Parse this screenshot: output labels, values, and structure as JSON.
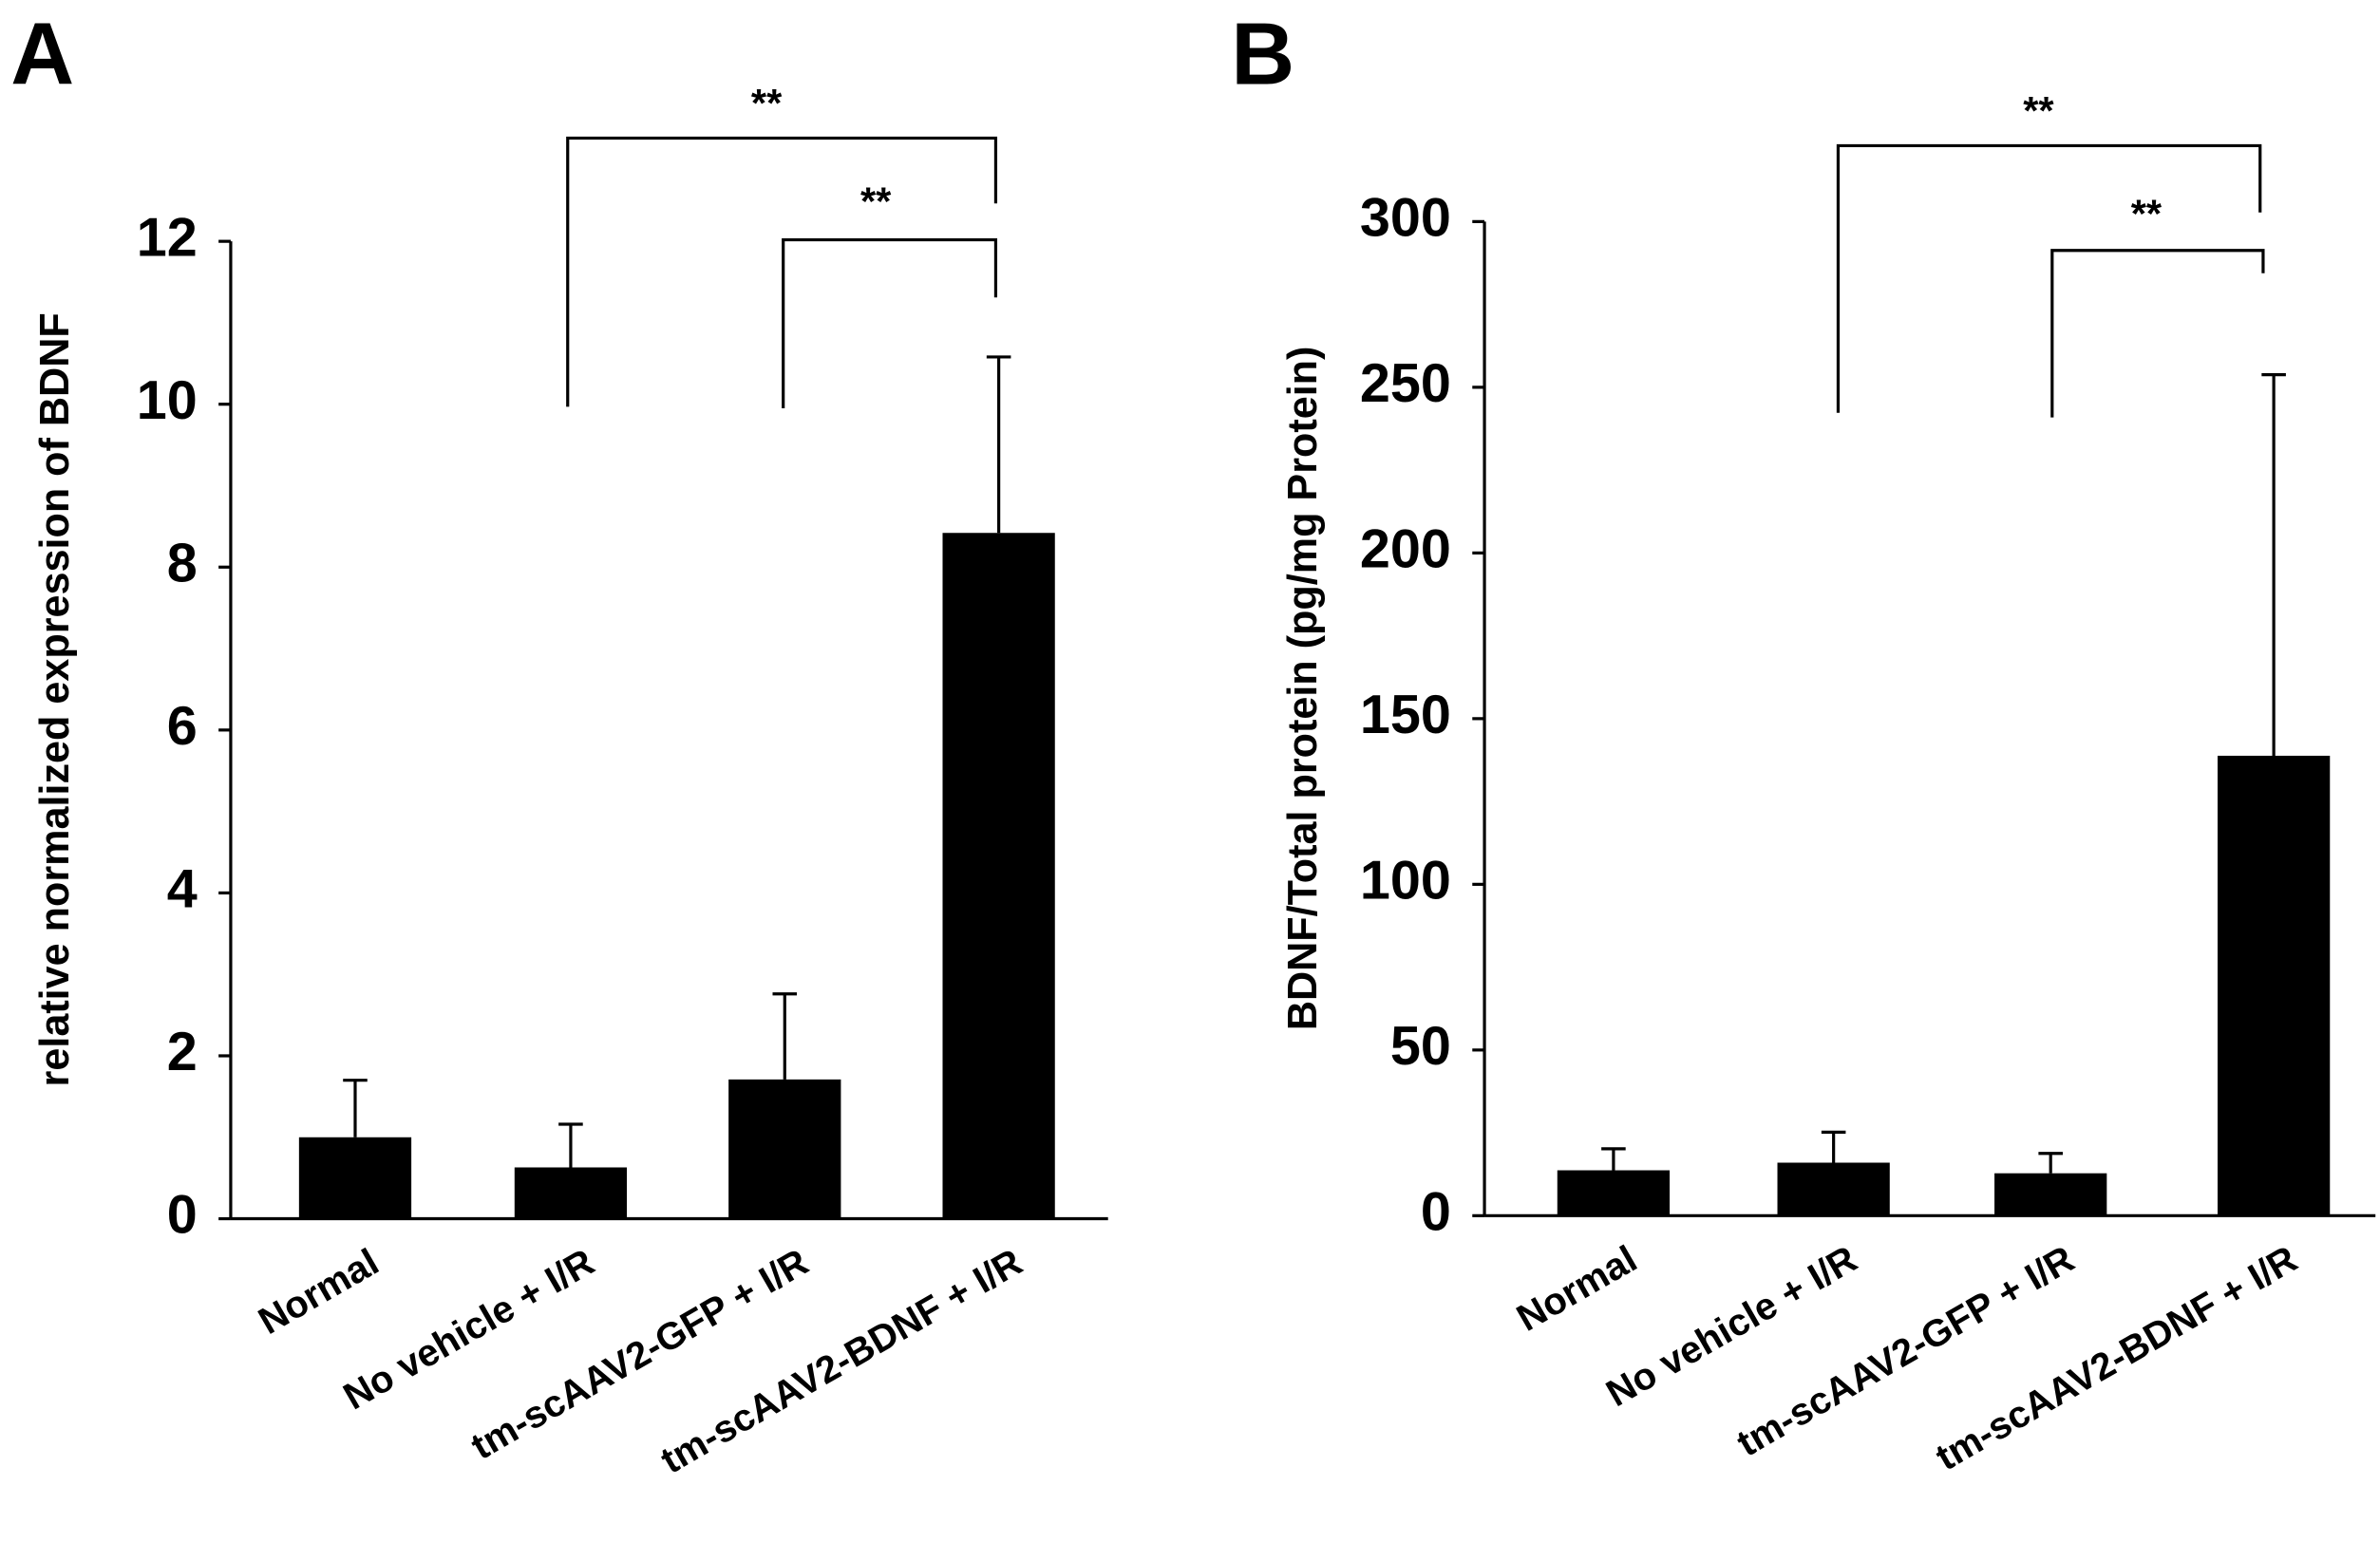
{
  "chart_data": [
    {
      "type": "bar",
      "panel": "A",
      "y_label": "relative normalized expression of BDNF",
      "categories": [
        "Normal",
        "No vehicle + I/R",
        "tm-scAAV2-GFP  + I/R",
        "tm-scAAV2-BDNF + I/R"
      ],
      "values": [
        1.0,
        0.63,
        1.71,
        8.42
      ],
      "errors": [
        0.7,
        0.53,
        1.05,
        2.16
      ],
      "color": "#000000",
      "ylim": [
        0,
        12
      ],
      "yticks": [
        0,
        2,
        4,
        6,
        8,
        10,
        12
      ],
      "annotations": [
        "**",
        "**"
      ]
    },
    {
      "type": "bar",
      "panel": "B",
      "y_label": "BDNF/Total protein (pg/mg Protein)",
      "categories": [
        "Normal",
        "No vehicle + I/R",
        "tm-scAAV2-GFP  + I/R",
        "tm-scAAV2-BDNF + I/R"
      ],
      "values": [
        13.7,
        16,
        12.8,
        138.8
      ],
      "errors": [
        6.5,
        9.2,
        6,
        115
      ],
      "color": "#000000",
      "ylim": [
        0,
        300
      ],
      "yticks": [
        0,
        50,
        100,
        150,
        200,
        250,
        300
      ],
      "annotations": [
        "**",
        "**"
      ]
    }
  ]
}
